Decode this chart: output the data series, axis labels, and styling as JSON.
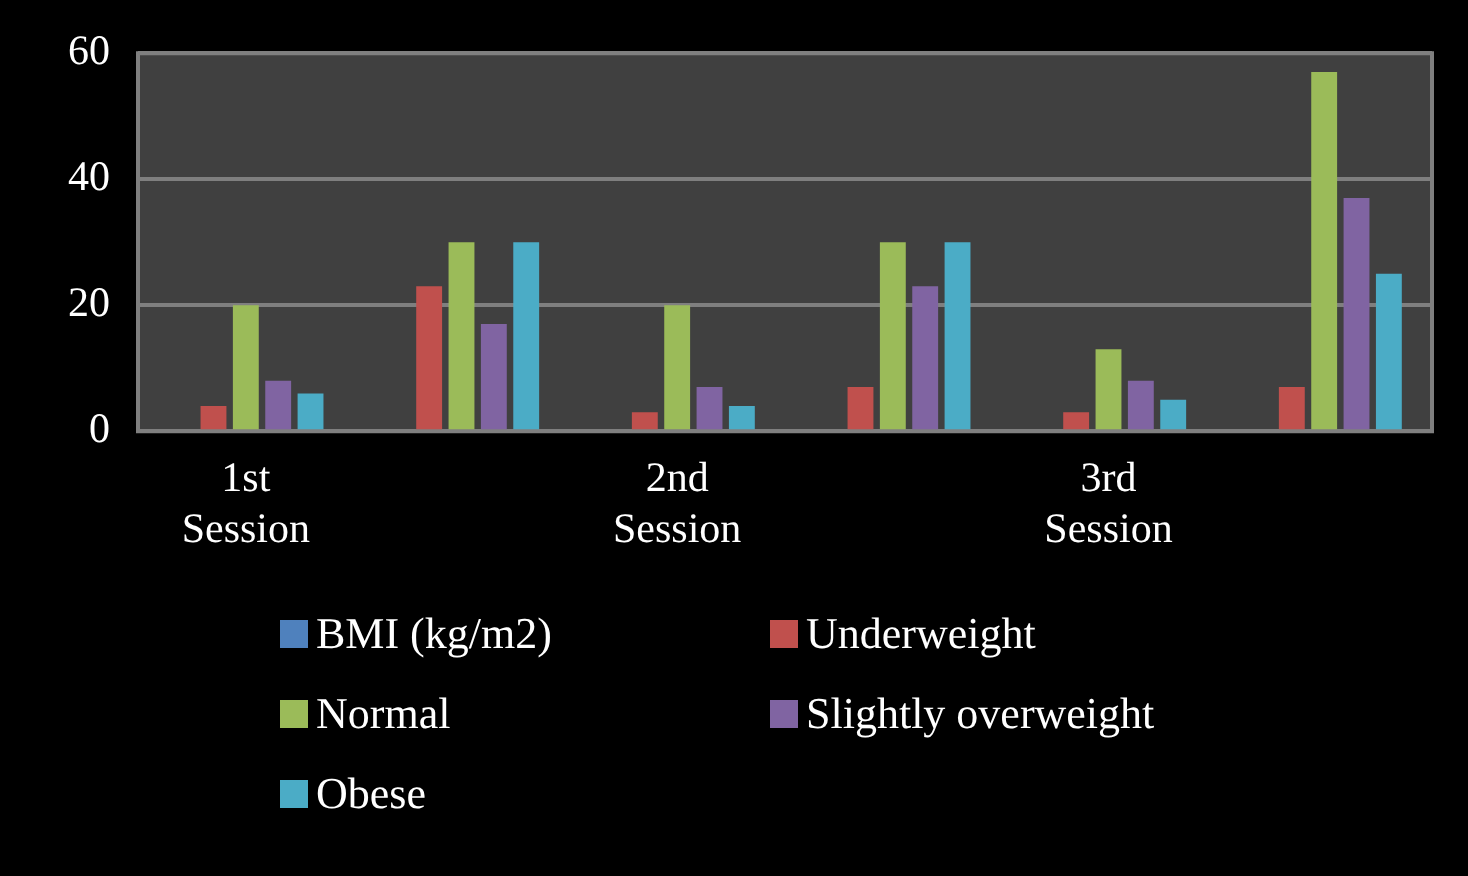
{
  "chart_data": {
    "type": "bar",
    "categories": [
      "1st Session",
      null,
      "2nd Session",
      null,
      "3rd Session",
      null
    ],
    "series": [
      {
        "name": "BMI (kg/m2)",
        "color": "#4f81bd",
        "values": [
          null,
          null,
          null,
          null,
          null,
          null
        ]
      },
      {
        "name": "Underweight",
        "color": "#c0504d",
        "values": [
          4,
          23,
          3,
          7,
          3,
          7
        ]
      },
      {
        "name": "Normal",
        "color": "#9bbb59",
        "values": [
          20,
          30,
          20,
          30,
          13,
          57
        ]
      },
      {
        "name": "Slightly overweight",
        "color": "#8064a2",
        "values": [
          8,
          17,
          7,
          23,
          8,
          37
        ]
      },
      {
        "name": "Obese",
        "color": "#4bacc6",
        "values": [
          6,
          30,
          4,
          30,
          5,
          25
        ]
      }
    ],
    "ylim": [
      0,
      60
    ],
    "yticks": [
      0,
      20,
      40,
      60
    ],
    "grid": "y",
    "legend": "bottom"
  }
}
